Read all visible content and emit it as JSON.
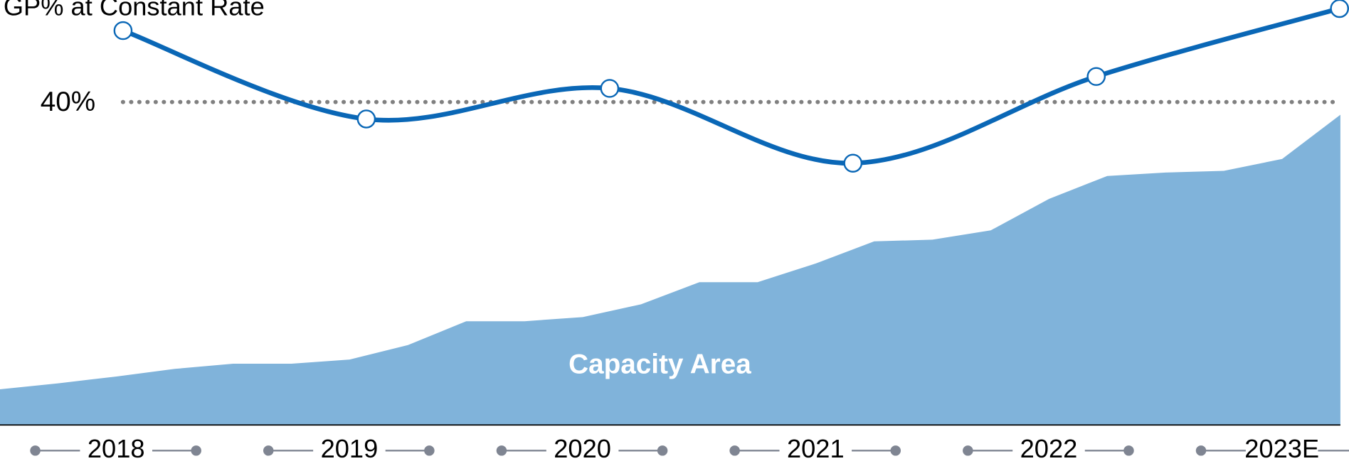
{
  "chart_data": {
    "type": "line",
    "title": "GP% at Constant Rate",
    "categories": [
      "2018",
      "2019",
      "2020",
      "2021",
      "2022",
      "2023E"
    ],
    "series": [
      {
        "name": "GP% at Constant Rate",
        "color": "#0a67b6",
        "values": [
          44.2,
          39.0,
          40.8,
          36.4,
          41.5,
          45.5
        ]
      }
    ],
    "ylim": [
      21,
      46
    ],
    "yticks": [
      {
        "value": 40,
        "label": "40%"
      }
    ],
    "area": {
      "name": "Capacity Area",
      "color": "#80b3da",
      "axis": "y2",
      "values": [
        42,
        49,
        57,
        66,
        72,
        72,
        77,
        94,
        122,
        122,
        127,
        142,
        168,
        168,
        190,
        216,
        218,
        229,
        266,
        293,
        297,
        299,
        313,
        365
      ]
    },
    "y2lim": [
      0,
      500
    ]
  }
}
